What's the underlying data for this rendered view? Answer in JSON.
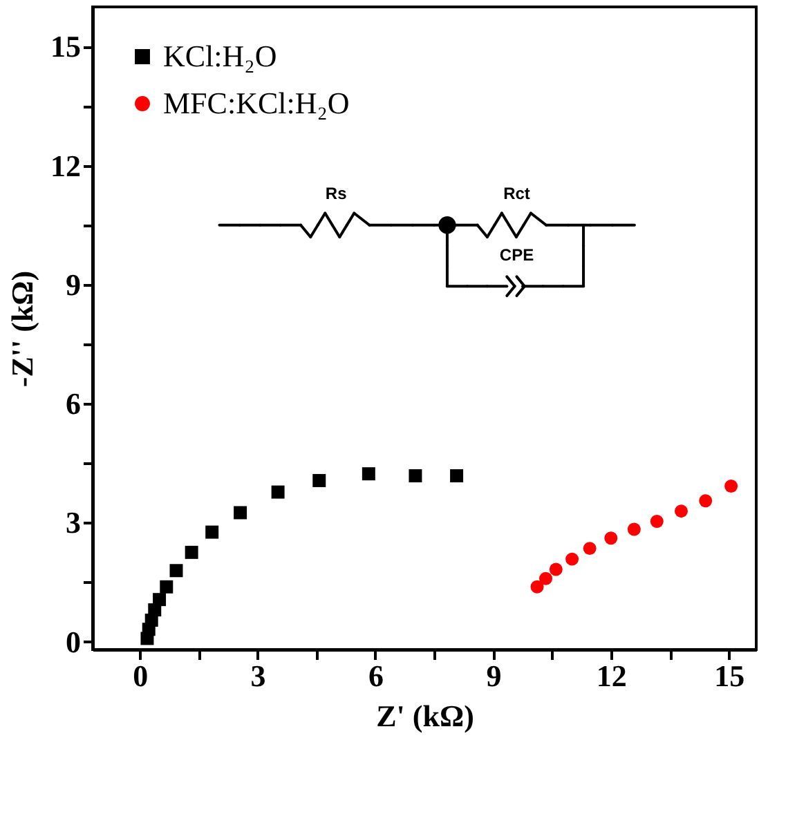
{
  "chart_data": {
    "type": "scatter",
    "xlabel": "Z' (kΩ)",
    "ylabel": "-Z'' (kΩ)",
    "xlim": [
      -1.2,
      15.7
    ],
    "ylim": [
      -0.2,
      16
    ],
    "xticks": [
      0,
      {
        "value": 1.5,
        "label": null
      },
      3,
      {
        "value": 4.5,
        "label": null
      },
      6,
      {
        "value": 7.5,
        "label": null
      },
      9,
      {
        "value": 10.5,
        "label": null
      },
      12,
      {
        "value": 13.5,
        "label": null
      },
      15
    ],
    "yticks": [
      0,
      {
        "value": 1.5,
        "label": null
      },
      3,
      {
        "value": 4.5,
        "label": null
      },
      6,
      {
        "value": 7.5,
        "label": null
      },
      9,
      {
        "value": 10.5,
        "label": null
      },
      12,
      {
        "value": 13.5,
        "label": null
      },
      15
    ],
    "grid": false,
    "legend": "top left",
    "series": [
      {
        "name": "KCl:H₂O",
        "color": "#000000",
        "marker": "square",
        "x": [
          0.19,
          0.23,
          0.3,
          0.38,
          0.5,
          0.68,
          0.93,
          1.32,
          1.84,
          2.56,
          3.52,
          4.57,
          5.83,
          7.02,
          8.07
        ],
        "values": [
          0.08,
          0.31,
          0.54,
          0.8,
          1.06,
          1.38,
          1.79,
          2.25,
          2.76,
          3.25,
          3.77,
          4.06,
          4.23,
          4.18,
          4.18
        ]
      },
      {
        "name": "MFC:KCl:H₂O",
        "color": "#ff0000",
        "marker": "circle",
        "x": [
          10.12,
          10.34,
          10.6,
          11.01,
          11.46,
          12.0,
          12.59,
          13.17,
          13.79,
          14.41,
          15.06
        ],
        "values": [
          1.38,
          1.59,
          1.82,
          2.08,
          2.35,
          2.61,
          2.83,
          3.03,
          3.29,
          3.55,
          3.92
        ]
      }
    ],
    "annotations": [
      "Rs",
      "Rct",
      "CPE"
    ]
  }
}
